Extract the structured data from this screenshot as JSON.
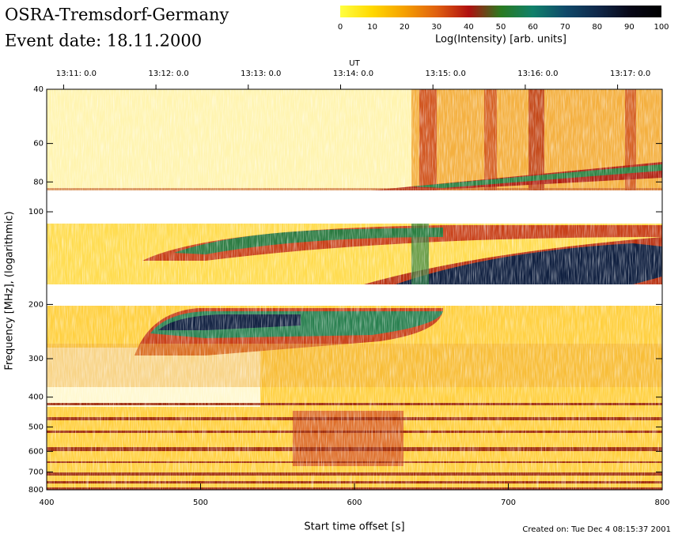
{
  "chart_data": {
    "type": "heatmap",
    "title": "OSRA-Tremsdorf-Germany",
    "subtitle": "Event date: 18.11.2000",
    "colorbar": {
      "label": "Log(Intensity) [arb. units]",
      "lim": [
        0,
        100
      ],
      "ticks": [
        0,
        10,
        20,
        30,
        40,
        50,
        60,
        70,
        80,
        90,
        100
      ],
      "colors": [
        "#ffff40",
        "#ffd800",
        "#f5a000",
        "#e06010",
        "#b01010",
        "#2a7a20",
        "#10806a",
        "#104a6a",
        "#10284a",
        "#080818",
        "#000000"
      ]
    },
    "xlabel": "Start time offset [s]",
    "ylabel": "Frequency [MHz], (logarithmic)",
    "x2label": "UT",
    "xlim": [
      400,
      800
    ],
    "xticks": [
      400,
      500,
      600,
      700,
      800
    ],
    "x2ticks": [
      {
        "value": 411,
        "label": "13:11: 0.0"
      },
      {
        "value": 471,
        "label": "13:12: 0.0"
      },
      {
        "value": 531,
        "label": "13:13: 0.0"
      },
      {
        "value": 591,
        "label": "13:14: 0.0"
      },
      {
        "value": 651,
        "label": "13:15: 0.0"
      },
      {
        "value": 711,
        "label": "13:16: 0.0"
      },
      {
        "value": 771,
        "label": "13:17: 0.0"
      }
    ],
    "ylim": [
      40,
      800
    ],
    "yscale": "log",
    "yinverted": true,
    "yticks": [
      40,
      60,
      80,
      100,
      200,
      300,
      400,
      500,
      600,
      700,
      800
    ],
    "footer": "Created on: Tue Dec  4 08:15:37 2001"
  }
}
